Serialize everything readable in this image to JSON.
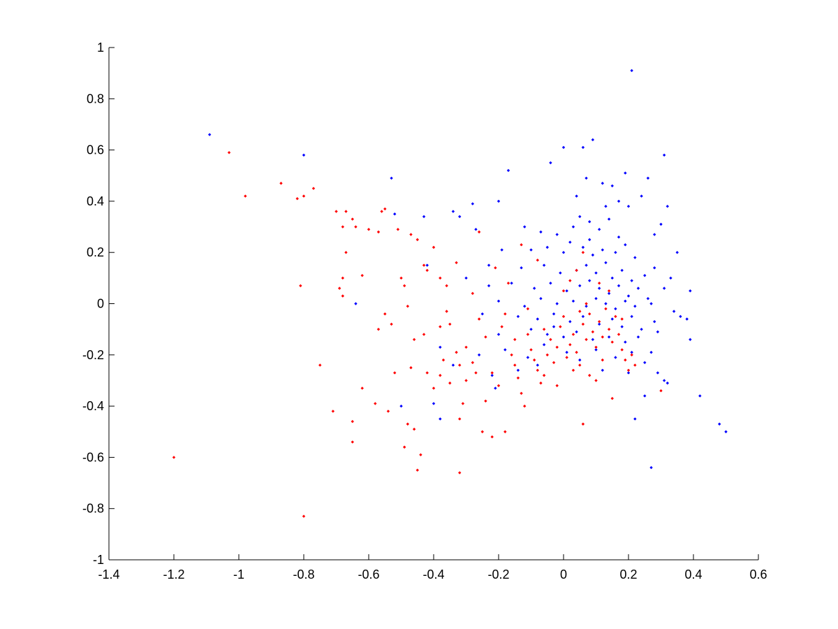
{
  "chart_data": {
    "type": "scatter",
    "title": "",
    "xlabel": "",
    "ylabel": "",
    "xlim": [
      -1.4,
      0.6
    ],
    "ylim": [
      -1,
      1
    ],
    "xticks": [
      -1.4,
      -1.2,
      -1,
      -0.8,
      -0.6,
      -0.4,
      -0.2,
      0,
      0.2,
      0.4,
      0.6
    ],
    "yticks": [
      -1,
      -0.8,
      -0.6,
      -0.4,
      -0.2,
      0,
      0.2,
      0.4,
      0.6,
      0.8,
      1
    ],
    "xtick_labels": [
      "-1.4",
      "-1.2",
      "-1",
      "-0.8",
      "-0.6",
      "-0.4",
      "-0.2",
      "0",
      "0.2",
      "0.4",
      "0.6"
    ],
    "ytick_labels": [
      "-1",
      "-0.8",
      "-0.6",
      "-0.4",
      "-0.2",
      "0",
      "0.2",
      "0.4",
      "0.6",
      "0.8",
      "1"
    ],
    "grid": false,
    "legend": "none",
    "series": [
      {
        "color": "#0000ff",
        "marker": "dot",
        "points": [
          [
            0.21,
            0.91
          ],
          [
            -1.09,
            0.66
          ],
          [
            -0.8,
            0.58
          ],
          [
            0.31,
            0.58
          ],
          [
            0.09,
            0.64
          ],
          [
            0.0,
            0.61
          ],
          [
            0.06,
            0.61
          ],
          [
            -0.53,
            0.49
          ],
          [
            -0.17,
            0.52
          ],
          [
            0.19,
            0.51
          ],
          [
            0.26,
            0.49
          ],
          [
            0.07,
            0.49
          ],
          [
            0.12,
            0.47
          ],
          [
            -0.04,
            0.55
          ],
          [
            0.32,
            0.38
          ],
          [
            0.3,
            0.31
          ],
          [
            0.28,
            0.27
          ],
          [
            0.24,
            0.42
          ],
          [
            0.2,
            0.38
          ],
          [
            0.17,
            0.4
          ],
          [
            0.15,
            0.46
          ],
          [
            -0.52,
            0.35
          ],
          [
            -0.43,
            0.34
          ],
          [
            -0.28,
            0.39
          ],
          [
            -0.2,
            0.4
          ],
          [
            -0.34,
            0.36
          ],
          [
            -0.32,
            0.34
          ],
          [
            -0.27,
            0.29
          ],
          [
            -0.12,
            0.3
          ],
          [
            -0.07,
            0.28
          ],
          [
            -0.02,
            0.27
          ],
          [
            0.03,
            0.3
          ],
          [
            0.05,
            0.34
          ],
          [
            0.08,
            0.32
          ],
          [
            0.11,
            0.29
          ],
          [
            0.14,
            0.33
          ],
          [
            0.17,
            0.26
          ],
          [
            -0.1,
            0.21
          ],
          [
            -0.05,
            0.22
          ],
          [
            0.0,
            0.2
          ],
          [
            0.02,
            0.24
          ],
          [
            0.06,
            0.22
          ],
          [
            0.09,
            0.19
          ],
          [
            0.12,
            0.21
          ],
          [
            0.16,
            0.2
          ],
          [
            0.19,
            0.23
          ],
          [
            0.22,
            0.18
          ],
          [
            -0.19,
            0.21
          ],
          [
            -0.23,
            0.15
          ],
          [
            -0.13,
            0.14
          ],
          [
            -0.06,
            0.15
          ],
          [
            -0.01,
            0.12
          ],
          [
            0.04,
            0.13
          ],
          [
            0.07,
            0.15
          ],
          [
            0.1,
            0.12
          ],
          [
            0.13,
            0.16
          ],
          [
            0.15,
            0.1
          ],
          [
            0.18,
            0.13
          ],
          [
            0.21,
            0.09
          ],
          [
            0.25,
            0.11
          ],
          [
            0.28,
            0.14
          ],
          [
            -0.16,
            0.08
          ],
          [
            -0.09,
            0.06
          ],
          [
            -0.04,
            0.08
          ],
          [
            0.01,
            0.05
          ],
          [
            0.05,
            0.07
          ],
          [
            0.08,
            0.09
          ],
          [
            0.11,
            0.06
          ],
          [
            0.14,
            0.04
          ],
          [
            0.17,
            0.07
          ],
          [
            0.2,
            0.03
          ],
          [
            0.23,
            0.06
          ],
          [
            0.26,
            0.02
          ],
          [
            0.31,
            0.06
          ],
          [
            -0.2,
            0.01
          ],
          [
            -0.12,
            -0.01
          ],
          [
            -0.07,
            0.02
          ],
          [
            -0.02,
            0.0
          ],
          [
            0.03,
            0.01
          ],
          [
            0.07,
            -0.01
          ],
          [
            0.1,
            0.02
          ],
          [
            0.13,
            0.0
          ],
          [
            0.16,
            -0.02
          ],
          [
            0.19,
            0.01
          ],
          [
            0.22,
            -0.01
          ],
          [
            0.27,
            0.0
          ],
          [
            0.34,
            -0.03
          ],
          [
            0.39,
            0.05
          ],
          [
            -0.64,
            0.0
          ],
          [
            -0.25,
            -0.04
          ],
          [
            -0.14,
            -0.05
          ],
          [
            -0.08,
            -0.06
          ],
          [
            -0.03,
            -0.04
          ],
          [
            0.02,
            -0.07
          ],
          [
            0.06,
            -0.05
          ],
          [
            0.11,
            -0.08
          ],
          [
            0.15,
            -0.06
          ],
          [
            0.18,
            -0.09
          ],
          [
            0.21,
            -0.05
          ],
          [
            0.24,
            -0.1
          ],
          [
            0.28,
            -0.07
          ],
          [
            0.36,
            -0.05
          ],
          [
            0.38,
            -0.06
          ],
          [
            -0.2,
            -0.12
          ],
          [
            -0.1,
            -0.1
          ],
          [
            -0.05,
            -0.12
          ],
          [
            0.0,
            -0.13
          ],
          [
            0.04,
            -0.11
          ],
          [
            0.09,
            -0.14
          ],
          [
            0.14,
            -0.13
          ],
          [
            0.19,
            -0.15
          ],
          [
            0.23,
            -0.13
          ],
          [
            0.29,
            -0.11
          ],
          [
            0.39,
            -0.14
          ],
          [
            -0.38,
            -0.17
          ],
          [
            -0.26,
            -0.2
          ],
          [
            -0.18,
            -0.18
          ],
          [
            -0.11,
            -0.21
          ],
          [
            -0.06,
            -0.16
          ],
          [
            0.01,
            -0.19
          ],
          [
            0.05,
            -0.22
          ],
          [
            0.1,
            -0.18
          ],
          [
            0.16,
            -0.21
          ],
          [
            0.21,
            -0.19
          ],
          [
            0.25,
            -0.23
          ],
          [
            0.27,
            -0.19
          ],
          [
            -0.34,
            -0.24
          ],
          [
            -0.22,
            -0.28
          ],
          [
            -0.14,
            -0.26
          ],
          [
            -0.08,
            -0.24
          ],
          [
            0.12,
            -0.26
          ],
          [
            0.2,
            -0.27
          ],
          [
            0.29,
            -0.27
          ],
          [
            0.31,
            -0.3
          ],
          [
            0.32,
            -0.31
          ],
          [
            -0.21,
            -0.33
          ],
          [
            -0.4,
            -0.39
          ],
          [
            -0.5,
            -0.4
          ],
          [
            0.25,
            -0.36
          ],
          [
            0.22,
            -0.45
          ],
          [
            0.42,
            -0.36
          ],
          [
            -0.38,
            -0.45
          ],
          [
            0.48,
            -0.47
          ],
          [
            0.5,
            -0.5
          ],
          [
            0.27,
            -0.64
          ],
          [
            -0.03,
            -0.09
          ],
          [
            0.08,
            0.25
          ],
          [
            0.13,
            0.38
          ],
          [
            0.04,
            0.42
          ],
          [
            -0.23,
            0.07
          ],
          [
            -0.3,
            0.1
          ],
          [
            -0.42,
            0.15
          ],
          [
            0.35,
            0.2
          ],
          [
            0.33,
            0.1
          ]
        ]
      },
      {
        "color": "#ff0000",
        "marker": "dot",
        "points": [
          [
            -1.2,
            -0.6
          ],
          [
            -1.03,
            0.59
          ],
          [
            -0.98,
            0.42
          ],
          [
            -0.87,
            0.47
          ],
          [
            -0.82,
            0.41
          ],
          [
            -0.8,
            0.42
          ],
          [
            -0.77,
            0.45
          ],
          [
            -0.81,
            0.07
          ],
          [
            -0.8,
            -0.83
          ],
          [
            -0.75,
            -0.24
          ],
          [
            -0.71,
            -0.42
          ],
          [
            -0.7,
            0.36
          ],
          [
            -0.68,
            0.3
          ],
          [
            -0.67,
            0.2
          ],
          [
            -0.68,
            0.1
          ],
          [
            -0.69,
            0.06
          ],
          [
            -0.68,
            0.03
          ],
          [
            -0.67,
            0.36
          ],
          [
            -0.65,
            0.33
          ],
          [
            -0.64,
            0.3
          ],
          [
            -0.62,
            0.11
          ],
          [
            -0.62,
            -0.33
          ],
          [
            -0.65,
            -0.46
          ],
          [
            -0.65,
            -0.54
          ],
          [
            -0.6,
            0.29
          ],
          [
            -0.57,
            0.28
          ],
          [
            -0.56,
            0.36
          ],
          [
            -0.55,
            0.37
          ],
          [
            -0.58,
            -0.39
          ],
          [
            -0.57,
            -0.1
          ],
          [
            -0.55,
            -0.04
          ],
          [
            -0.53,
            -0.08
          ],
          [
            -0.54,
            -0.42
          ],
          [
            -0.52,
            -0.27
          ],
          [
            -0.51,
            0.29
          ],
          [
            -0.5,
            0.1
          ],
          [
            -0.49,
            0.07
          ],
          [
            -0.48,
            -0.01
          ],
          [
            -0.47,
            -0.25
          ],
          [
            -0.46,
            -0.14
          ],
          [
            -0.48,
            -0.47
          ],
          [
            -0.49,
            -0.56
          ],
          [
            -0.46,
            -0.49
          ],
          [
            -0.45,
            -0.65
          ],
          [
            -0.44,
            -0.59
          ],
          [
            -0.47,
            0.27
          ],
          [
            -0.45,
            0.25
          ],
          [
            -0.43,
            0.15
          ],
          [
            -0.42,
            0.13
          ],
          [
            -0.4,
            0.22
          ],
          [
            -0.38,
            0.1
          ],
          [
            -0.36,
            0.07
          ],
          [
            -0.36,
            -0.03
          ],
          [
            -0.35,
            -0.08
          ],
          [
            -0.42,
            -0.27
          ],
          [
            -0.4,
            -0.33
          ],
          [
            -0.38,
            -0.28
          ],
          [
            -0.37,
            -0.22
          ],
          [
            -0.35,
            -0.31
          ],
          [
            -0.33,
            -0.19
          ],
          [
            -0.32,
            -0.24
          ],
          [
            -0.31,
            -0.39
          ],
          [
            -0.32,
            -0.45
          ],
          [
            -0.32,
            -0.66
          ],
          [
            -0.3,
            -0.17
          ],
          [
            -0.28,
            -0.23
          ],
          [
            -0.27,
            -0.27
          ],
          [
            -0.26,
            -0.06
          ],
          [
            -0.24,
            -0.13
          ],
          [
            -0.22,
            -0.27
          ],
          [
            -0.2,
            -0.32
          ],
          [
            -0.19,
            -0.09
          ],
          [
            -0.18,
            -0.04
          ],
          [
            -0.16,
            -0.2
          ],
          [
            -0.15,
            -0.24
          ],
          [
            -0.14,
            -0.29
          ],
          [
            -0.13,
            -0.35
          ],
          [
            -0.12,
            -0.4
          ],
          [
            -0.11,
            -0.12
          ],
          [
            -0.1,
            -0.18
          ],
          [
            -0.09,
            -0.22
          ],
          [
            -0.08,
            -0.26
          ],
          [
            -0.07,
            -0.31
          ],
          [
            -0.06,
            -0.28
          ],
          [
            -0.05,
            -0.2
          ],
          [
            -0.04,
            -0.14
          ],
          [
            -0.03,
            -0.23
          ],
          [
            -0.02,
            -0.17
          ],
          [
            -0.01,
            -0.09
          ],
          [
            0.0,
            -0.05
          ],
          [
            0.01,
            -0.21
          ],
          [
            0.02,
            -0.16
          ],
          [
            0.03,
            -0.12
          ],
          [
            0.04,
            -0.19
          ],
          [
            0.05,
            -0.24
          ],
          [
            0.06,
            -0.08
          ],
          [
            0.07,
            -0.14
          ],
          [
            0.08,
            -0.04
          ],
          [
            0.09,
            -0.11
          ],
          [
            0.1,
            -0.17
          ],
          [
            0.11,
            -0.07
          ],
          [
            0.12,
            -0.13
          ],
          [
            0.13,
            -0.02
          ],
          [
            0.14,
            -0.1
          ],
          [
            0.15,
            -0.15
          ],
          [
            0.16,
            -0.05
          ],
          [
            0.17,
            -0.12
          ],
          [
            0.18,
            -0.18
          ],
          [
            0.19,
            -0.22
          ],
          [
            0.2,
            -0.26
          ],
          [
            0.21,
            -0.2
          ],
          [
            0.22,
            -0.24
          ],
          [
            0.0,
            0.05
          ],
          [
            0.02,
            0.09
          ],
          [
            0.04,
            0.13
          ],
          [
            0.06,
            0.2
          ],
          [
            -0.08,
            0.17
          ],
          [
            -0.13,
            0.23
          ],
          [
            -0.21,
            0.14
          ],
          [
            -0.28,
            0.04
          ],
          [
            -0.38,
            -0.09
          ],
          [
            -0.43,
            -0.12
          ],
          [
            -0.3,
            -0.3
          ],
          [
            -0.24,
            -0.38
          ],
          [
            -0.25,
            -0.5
          ],
          [
            -0.22,
            -0.52
          ],
          [
            -0.18,
            -0.5
          ],
          [
            0.06,
            -0.47
          ],
          [
            0.15,
            -0.37
          ],
          [
            0.3,
            -0.34
          ],
          [
            0.1,
            -0.3
          ],
          [
            0.03,
            -0.26
          ],
          [
            -0.02,
            -0.32
          ],
          [
            -0.33,
            0.16
          ],
          [
            -0.26,
            0.28
          ],
          [
            -0.17,
            0.08
          ],
          [
            0.12,
            -0.22
          ],
          [
            0.08,
            -0.28
          ],
          [
            -0.06,
            -0.1
          ],
          [
            0.14,
            0.05
          ],
          [
            0.18,
            -0.06
          ],
          [
            0.11,
            0.08
          ],
          [
            0.07,
            0.0
          ],
          [
            -0.11,
            -0.02
          ],
          [
            -0.15,
            -0.14
          ],
          [
            0.05,
            -0.03
          ]
        ]
      }
    ]
  }
}
